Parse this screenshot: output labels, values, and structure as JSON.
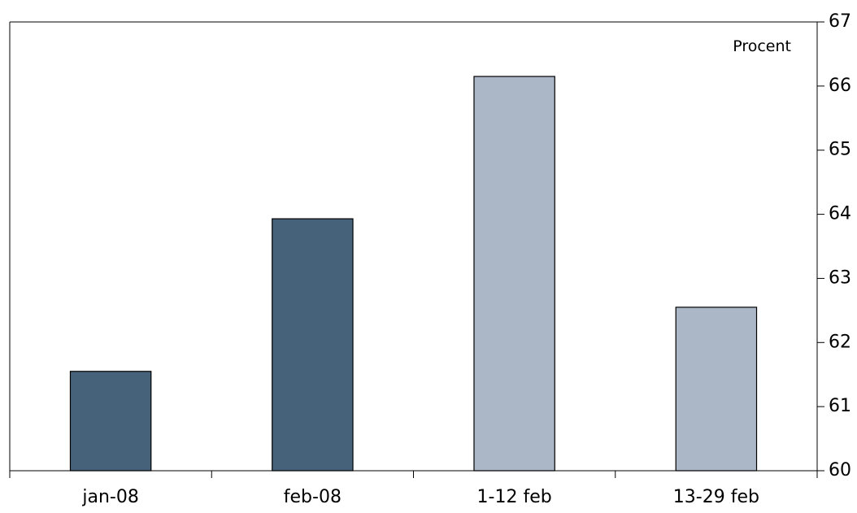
{
  "chart_data": {
    "type": "bar",
    "categories": [
      "jan-08",
      "feb-08",
      "1-12 feb",
      "13-29 feb"
    ],
    "values": [
      61.55,
      63.93,
      66.15,
      62.55
    ],
    "bar_colors": [
      "#46627a",
      "#46627a",
      "#abb6c6",
      "#abb6c6"
    ],
    "unit_label": "Procent",
    "ylim": [
      60,
      67
    ],
    "yticks": [
      60,
      61,
      62,
      63,
      64,
      65,
      66,
      67
    ],
    "y_axis_side": "right",
    "grid": false,
    "legend": "none"
  }
}
